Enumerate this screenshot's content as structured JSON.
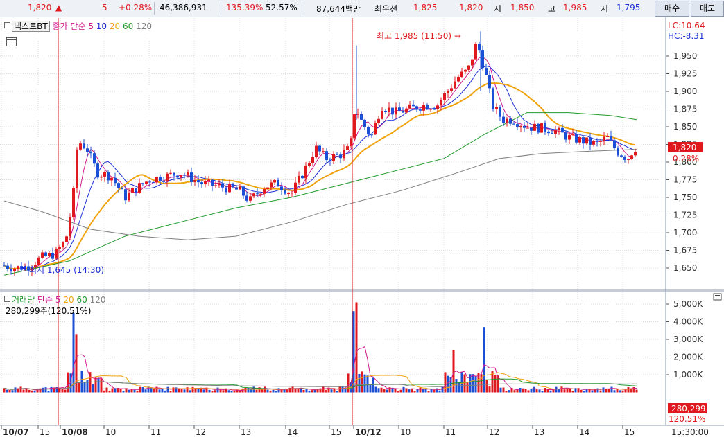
{
  "quote_bar": {
    "price": "1,820",
    "change_arrow": "▲",
    "change": "5",
    "change_pct": "+0.28%",
    "volume": "46,386,931",
    "volume_ratio": "135.39%",
    "turnover": "52.57%",
    "amount": "87,644백만",
    "best_ask_label": "최우선",
    "best_ask": "1,825",
    "best_bid": "1,820",
    "open_label": "시",
    "open": "1,850",
    "high_label": "고",
    "high": "1,985",
    "low_label": "저",
    "low": "1,795",
    "buy_button": "매수",
    "sell_button": "매도"
  },
  "price_panel": {
    "legend_name": "넥스트BT",
    "legend_ma_label": "종가 단순",
    "ma_periods": [
      "5",
      "10",
      "20",
      "60",
      "120"
    ],
    "lc_label": "LC:10.64",
    "hc_label": "HC:-8.31",
    "high_annotation": "최고 1,985 (11:50) →",
    "low_annotation": "최저 1,645 (14:30)",
    "price_tag": "1,820",
    "pct_tag": "0.28%",
    "yticks": [
      "1,950",
      "1,925",
      "1,900",
      "1,875",
      "1,850",
      "1,825",
      "1,800",
      "1,775",
      "1,750",
      "1,725",
      "1,700",
      "1,675",
      "1,650"
    ]
  },
  "volume_panel": {
    "legend_name": "거래량",
    "legend_ma_label": "단순",
    "ma_periods": [
      "5",
      "20",
      "60",
      "120"
    ],
    "current_volume": "280,299주(120.51%)",
    "volume_tag": "280,299",
    "pct_tag": "120.51%",
    "yticks": [
      "5,000K",
      "4,000K",
      "3,000K",
      "2,000K",
      "1,000K"
    ]
  },
  "x_axis": {
    "labels": [
      "10/07",
      "15",
      "10/08",
      "10",
      "11",
      "12",
      "13",
      "14",
      "15",
      "10/12",
      "10",
      "11",
      "12",
      "13",
      "14",
      "15"
    ],
    "time_label": "15:30:00"
  },
  "colors": {
    "up": "#e0191f",
    "down": "#1b4fd6",
    "ma5": "#d0188c",
    "ma10": "#1b2fd6",
    "ma20": "#f0a20a",
    "ma60": "#1f9a2c",
    "ma120": "#7f7f7f"
  },
  "chart_data": {
    "type": "candlestick",
    "price_range": [
      1625,
      1975
    ],
    "volume_range": [
      0,
      5000
    ],
    "volume_unit": "K",
    "high": 1985,
    "low": 1645,
    "last": 1820
  }
}
